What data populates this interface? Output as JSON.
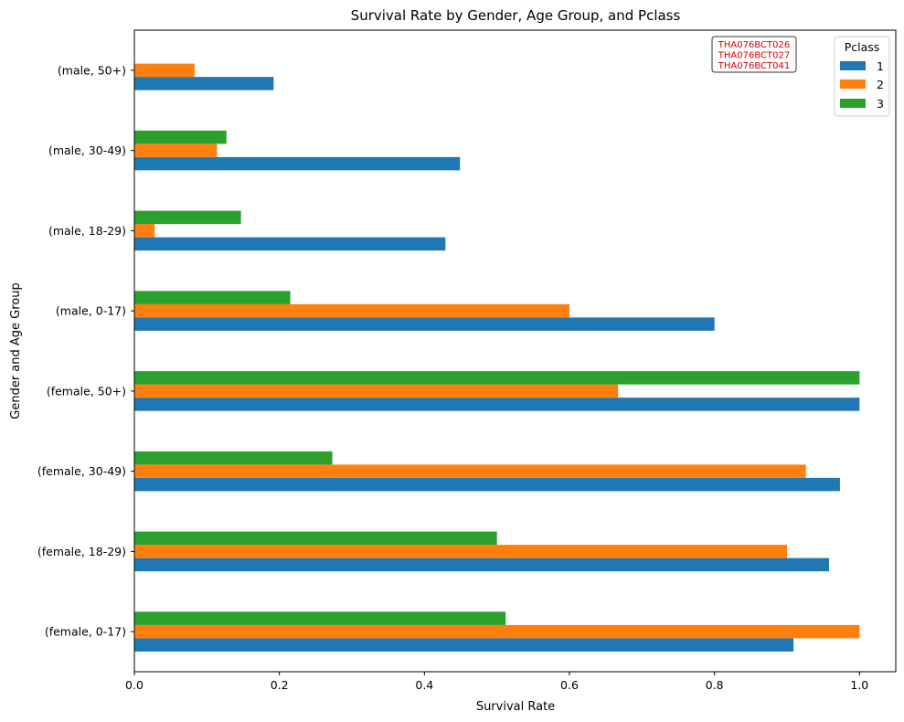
{
  "chart_data": {
    "type": "bar",
    "orientation": "horizontal",
    "title": "Survival Rate by Gender, Age Group, and Pclass",
    "xlabel": "Survival Rate",
    "ylabel": "Gender and Age Group",
    "xlim": [
      0,
      1.05
    ],
    "xticks": [
      "0.0",
      "0.2",
      "0.4",
      "0.6",
      "0.8",
      "1.0"
    ],
    "categories": [
      "(female, 0-17)",
      "(female, 18-29)",
      "(female, 30-49)",
      "(female, 50+)",
      "(male, 0-17)",
      "(male, 18-29)",
      "(male, 30-49)",
      "(male, 50+)"
    ],
    "series": [
      {
        "name": "1",
        "color": "#1f77b4",
        "values": [
          0.909,
          0.958,
          0.973,
          1.0,
          0.8,
          0.429,
          0.449,
          0.192
        ]
      },
      {
        "name": "2",
        "color": "#ff7f0e",
        "values": [
          1.0,
          0.9,
          0.926,
          0.667,
          0.6,
          0.028,
          0.114,
          0.083
        ]
      },
      {
        "name": "3",
        "color": "#2ca02c",
        "values": [
          0.512,
          0.5,
          0.273,
          1.0,
          0.215,
          0.147,
          0.127,
          0.0
        ]
      }
    ],
    "legend": {
      "title": "Pclass",
      "placement": "top-right"
    },
    "grid": false,
    "annotation": [
      "THA076BCT026",
      "THA076BCT027",
      "THA076BCT041"
    ]
  }
}
